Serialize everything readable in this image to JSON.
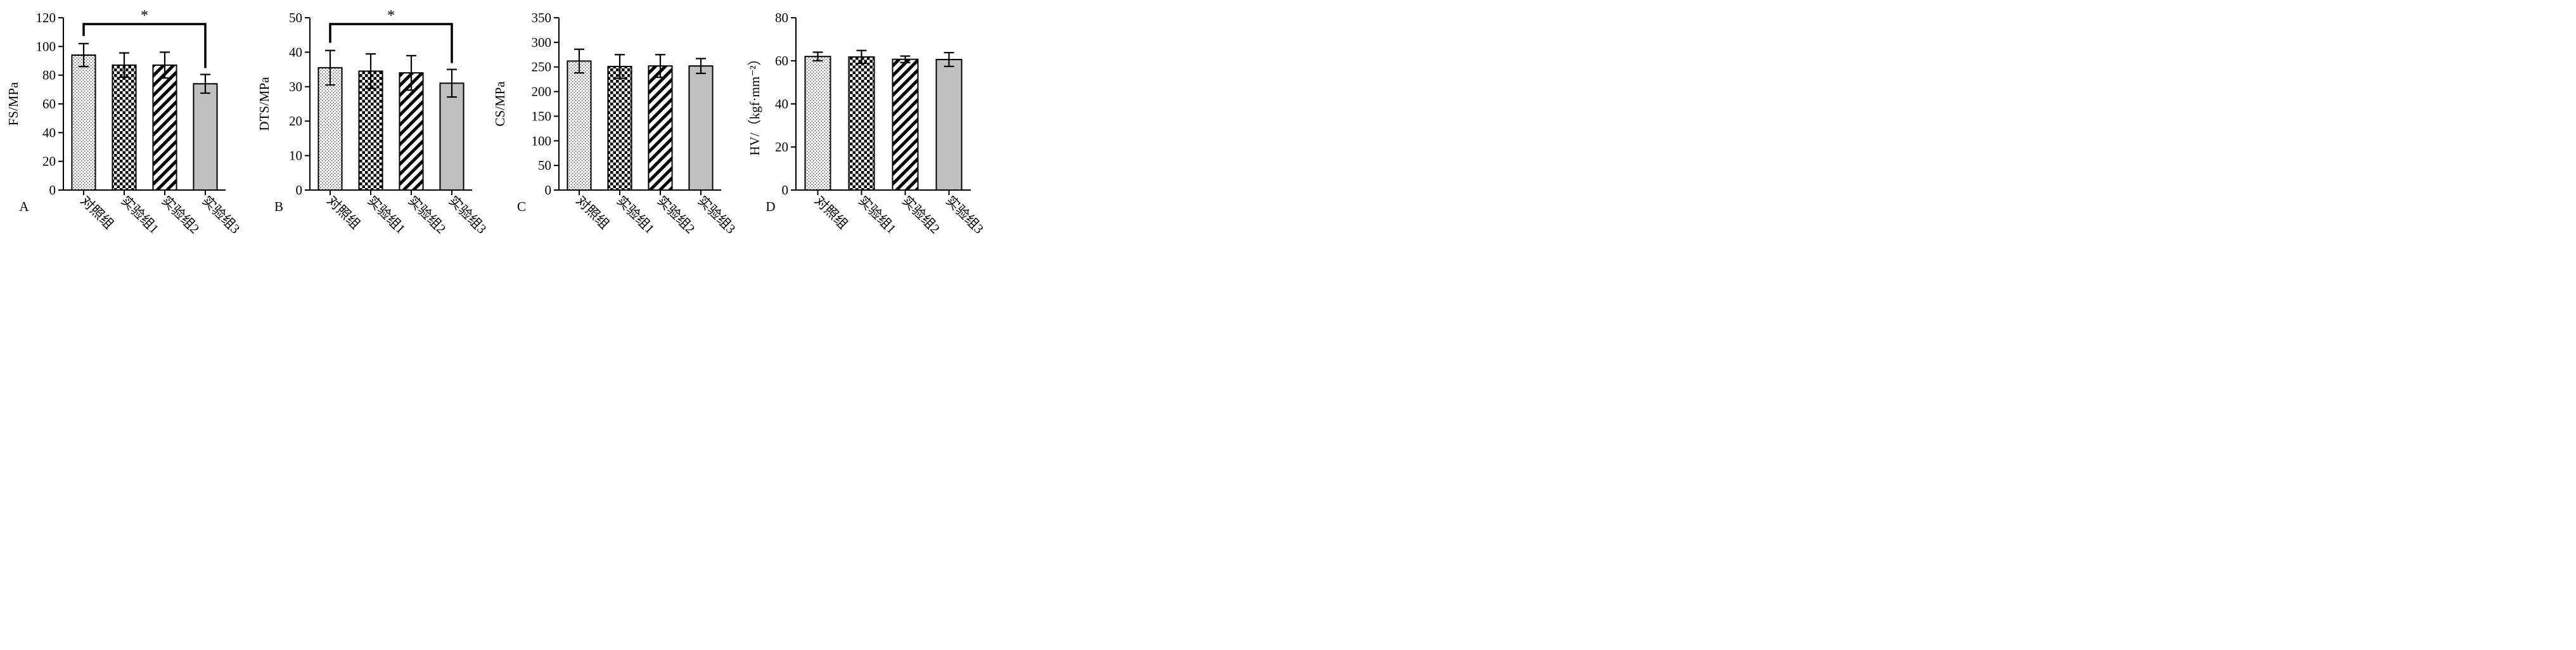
{
  "chart_data": [
    {
      "type": "bar",
      "panel_label": "A",
      "categories": [
        "对照组",
        "实验组1",
        "实验组2",
        "实验组3"
      ],
      "values": [
        94,
        87,
        87,
        74
      ],
      "errors": [
        8,
        8.5,
        9,
        6.5
      ],
      "ylabel": "FS/MPa",
      "ylim": [
        0,
        120
      ],
      "yticks": [
        "0",
        "20",
        "40",
        "60",
        "80",
        "100",
        "120"
      ],
      "significance": {
        "from": 0,
        "to": 3,
        "label": "*"
      }
    },
    {
      "type": "bar",
      "panel_label": "B",
      "categories": [
        "对照组",
        "实验组1",
        "实验组2",
        "实验组3"
      ],
      "values": [
        35.5,
        34.5,
        34,
        31
      ],
      "errors": [
        5,
        5,
        5,
        4
      ],
      "ylabel": "DTS/MPa",
      "ylim": [
        0,
        50
      ],
      "yticks": [
        "0",
        "10",
        "20",
        "30",
        "40",
        "50"
      ],
      "significance": {
        "from": 0,
        "to": 3,
        "label": "*"
      }
    },
    {
      "type": "bar",
      "panel_label": "C",
      "categories": [
        "对照组",
        "实验组1",
        "实验组2",
        "实验组3"
      ],
      "values": [
        262,
        251,
        252,
        252
      ],
      "errors": [
        24,
        24,
        23,
        15
      ],
      "ylabel": "CS/MPa",
      "ylim": [
        0,
        350
      ],
      "yticks": [
        "0",
        "50",
        "100",
        "150",
        "200",
        "250",
        "300",
        "350"
      ],
      "significance": null
    },
    {
      "type": "bar",
      "panel_label": "D",
      "categories": [
        "对照组",
        "实验组1",
        "实验组2",
        "实验组3"
      ],
      "values": [
        62,
        61.8,
        60.7,
        60.6
      ],
      "errors": [
        2,
        3,
        1.5,
        3.2
      ],
      "ylabel": "HV/（kgf·mm⁻²）",
      "ylim": [
        0,
        80
      ],
      "yticks": [
        "0",
        "20",
        "40",
        "60",
        "80"
      ],
      "significance": null
    }
  ],
  "patterns": [
    "dots",
    "checker",
    "diagonal",
    "solid-gray"
  ],
  "colors": {
    "bar_fill_solid": "#c0c0c0",
    "ink": "#000000"
  }
}
